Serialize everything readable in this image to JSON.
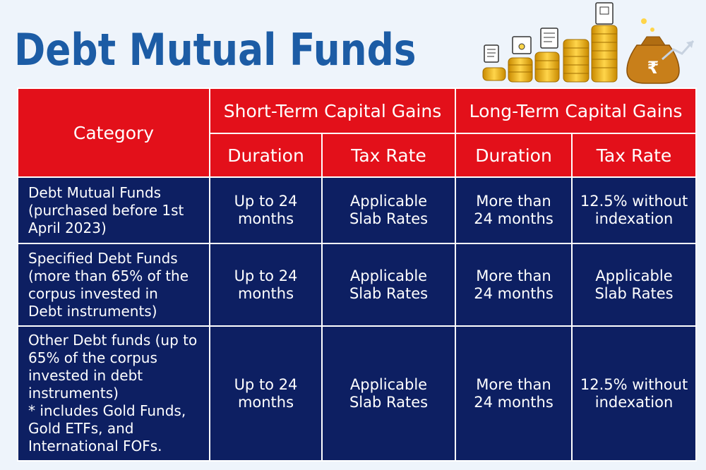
{
  "title": "Debt Mutual Funds",
  "illustration_icons": [
    "document-icon",
    "certificate-icon",
    "receipt-icon",
    "building-document-icon",
    "coin-stacks-icon",
    "money-bag-icon",
    "growth-arrow-icon"
  ],
  "colors": {
    "title": "#1c5ca5",
    "header_bg": "#e3101a",
    "body_bg": "#0d1f62",
    "page_bg": "#eef4fb"
  },
  "table": {
    "category_header": "Category",
    "stcg_header": "Short-Term Capital Gains",
    "ltcg_header": "Long-Term Capital Gains",
    "sub_headers": {
      "stcg_duration": "Duration",
      "stcg_tax": "Tax Rate",
      "ltcg_duration": "Duration",
      "ltcg_tax": "Tax Rate"
    },
    "rows": [
      {
        "category": [
          "Debt Mutual Funds",
          "(purchased before 1st",
          "April 2023)"
        ],
        "stcg_duration": [
          "Up to 24",
          "months"
        ],
        "stcg_tax": [
          "Applicable",
          "Slab Rates"
        ],
        "ltcg_duration": [
          "More than",
          "24 months"
        ],
        "ltcg_tax": [
          "12.5% without",
          "indexation"
        ]
      },
      {
        "category": [
          "Specified Debt Funds",
          "(more than 65% of the",
          "corpus invested in",
          "Debt instruments)"
        ],
        "stcg_duration": [
          "Up to 24",
          "months"
        ],
        "stcg_tax": [
          "Applicable",
          "Slab Rates"
        ],
        "ltcg_duration": [
          "More than",
          "24 months"
        ],
        "ltcg_tax": [
          "Applicable",
          "Slab Rates"
        ]
      },
      {
        "category": [
          "Other Debt funds (up to",
          "65% of the corpus",
          "invested in debt",
          "instruments)",
          "* includes Gold Funds,",
          "Gold ETFs, and",
          "International FOFs."
        ],
        "stcg_duration": [
          "Up to 24",
          "months"
        ],
        "stcg_tax": [
          "Applicable",
          "Slab Rates"
        ],
        "ltcg_duration": [
          "More than",
          "24 months"
        ],
        "ltcg_tax": [
          "12.5% without",
          "indexation"
        ]
      }
    ]
  }
}
